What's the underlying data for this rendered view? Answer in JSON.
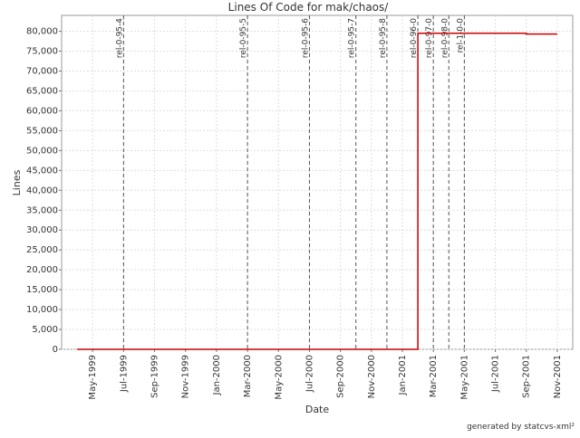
{
  "chart_data": {
    "type": "step",
    "title": "Lines Of Code for mak/chaos/",
    "x_label": "Date",
    "y_label": "Lines",
    "footer": "generated by statcvs-xml²",
    "x": [
      "1999-04",
      "2001-02",
      "2001-02",
      "2001-09",
      "2001-11"
    ],
    "values": [
      0,
      66500,
      79500,
      79300,
      79300
    ],
    "color": "#cc0000",
    "xlim": [
      "1999-03",
      "2001-12"
    ],
    "xticks": [
      {
        "value": "1999-05",
        "label": "May-1999"
      },
      {
        "value": "1999-07",
        "label": "Jul-1999"
      },
      {
        "value": "1999-09",
        "label": "Sep-1999"
      },
      {
        "value": "1999-11",
        "label": "Nov-1999"
      },
      {
        "value": "2000-01",
        "label": "Jan-2000"
      },
      {
        "value": "2000-03",
        "label": "Mar-2000"
      },
      {
        "value": "2000-05",
        "label": "May-2000"
      },
      {
        "value": "2000-07",
        "label": "Jul-2000"
      },
      {
        "value": "2000-09",
        "label": "Sep-2000"
      },
      {
        "value": "2000-11",
        "label": "Nov-2000"
      },
      {
        "value": "2001-01",
        "label": "Jan-2001"
      },
      {
        "value": "2001-03",
        "label": "Mar-2001"
      },
      {
        "value": "2001-05",
        "label": "May-2001"
      },
      {
        "value": "2001-07",
        "label": "Jul-2001"
      },
      {
        "value": "2001-09",
        "label": "Sep-2001"
      },
      {
        "value": "2001-11",
        "label": "Nov-2001"
      }
    ],
    "ylim": [
      0,
      84000
    ],
    "yticks": [
      0,
      {
        "value": 5000,
        "label": "5,000"
      },
      {
        "value": 10000,
        "label": "10,000"
      },
      {
        "value": 15000,
        "label": "15,000"
      },
      {
        "value": 20000,
        "label": "20,000"
      },
      {
        "value": 25000,
        "label": "25,000"
      },
      {
        "value": 30000,
        "label": "30,000"
      },
      {
        "value": 35000,
        "label": "35,000"
      },
      {
        "value": 40000,
        "label": "40,000"
      },
      {
        "value": 45000,
        "label": "45,000"
      },
      {
        "value": 50000,
        "label": "50,000"
      },
      {
        "value": 55000,
        "label": "55,000"
      },
      {
        "value": 60000,
        "label": "60,000"
      },
      {
        "value": 65000,
        "label": "65,000"
      },
      {
        "value": 70000,
        "label": "70,000"
      },
      {
        "value": 75000,
        "label": "75,000"
      },
      {
        "value": 80000,
        "label": "80,000"
      }
    ],
    "grid": true,
    "markers": [
      {
        "label": "rel-0-95-4",
        "x": "1999-07"
      },
      {
        "label": "rel-0-95-5",
        "x": "2000-03"
      },
      {
        "label": "rel-0-95-6",
        "x": "2000-07"
      },
      {
        "label": "rel-0-95-7",
        "x": "2000-10"
      },
      {
        "label": "rel-0-95-8",
        "x": "2000-12"
      },
      {
        "label": "rel-0-96-0",
        "x": "2001-02"
      },
      {
        "label": "rel-0-97-0",
        "x": "2001-03"
      },
      {
        "label": "rel-0-98-0",
        "x": "2001-04"
      },
      {
        "label": "rel-1-0-0",
        "x": "2001-05"
      }
    ]
  }
}
